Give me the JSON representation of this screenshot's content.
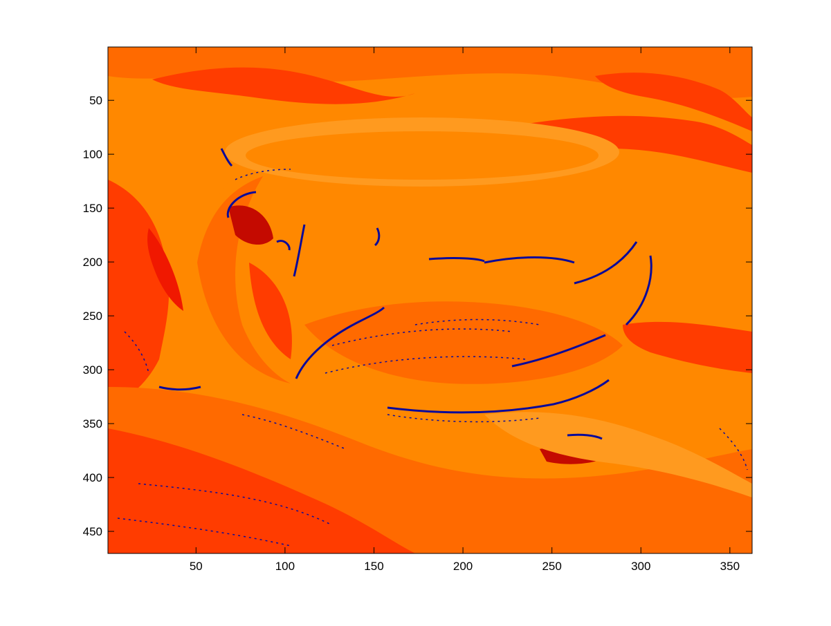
{
  "chart_data": {
    "type": "heatmap",
    "image_width": 362,
    "image_height": 470,
    "xlim": [
      0.5,
      362.5
    ],
    "ylim": [
      0.5,
      470.5
    ],
    "y_direction": "reverse",
    "x_ticks": [
      50,
      100,
      150,
      200,
      250,
      300,
      350
    ],
    "y_ticks": [
      50,
      100,
      150,
      200,
      250,
      300,
      350,
      400,
      450
    ],
    "x_tick_labels": [
      "50",
      "100",
      "150",
      "200",
      "250",
      "300",
      "350"
    ],
    "y_tick_labels": [
      "50",
      "100",
      "150",
      "200",
      "250",
      "300",
      "350",
      "400",
      "450"
    ],
    "grid": false,
    "colorbar": false,
    "colors": {
      "background": "#ff8800",
      "light_orange": "#ff9a1f",
      "dark_orange": "#ff6a00",
      "red_orange": "#ff3c00",
      "red": "#f01800",
      "dark_red": "#c40a00",
      "edge_blue": "#0a0a9a"
    }
  }
}
